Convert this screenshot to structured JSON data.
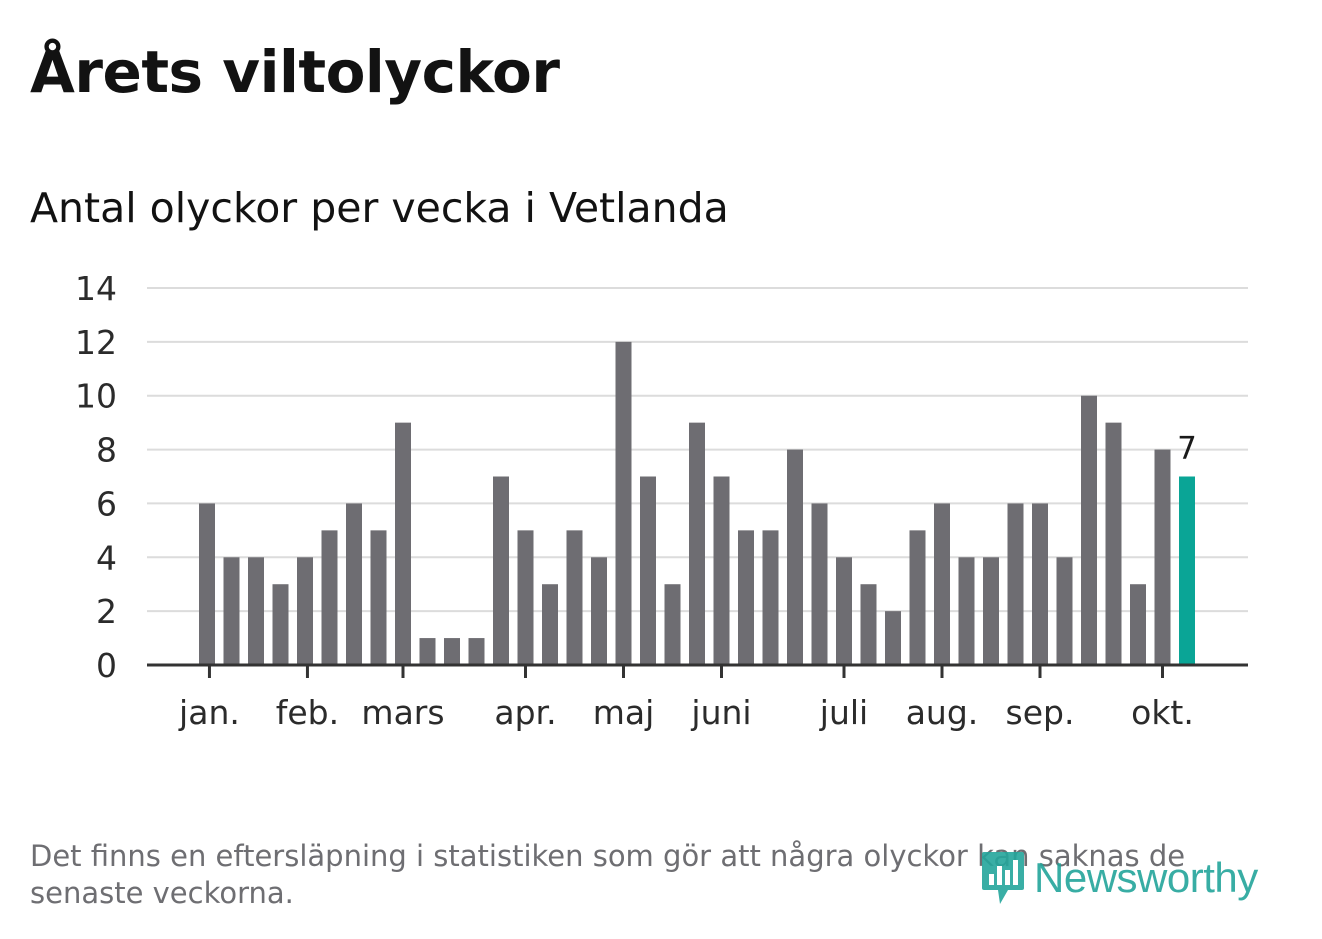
{
  "title": "Årets viltolyckor",
  "chart_data": {
    "type": "bar",
    "title": "Antal olyckor per vecka i Vetlanda",
    "xlabel": "",
    "ylabel": "",
    "ylim": [
      0,
      14
    ],
    "yticks": [
      0,
      2,
      4,
      6,
      8,
      10,
      12,
      14
    ],
    "values": [
      6,
      4,
      4,
      3,
      4,
      5,
      6,
      5,
      9,
      1,
      1,
      1,
      7,
      5,
      3,
      5,
      4,
      12,
      7,
      3,
      9,
      7,
      5,
      5,
      8,
      6,
      4,
      3,
      2,
      5,
      6,
      4,
      4,
      6,
      6,
      4,
      10,
      9,
      3,
      8,
      7
    ],
    "month_ticks": [
      {
        "label": "jan.",
        "week_index": 0.1
      },
      {
        "label": "feb.",
        "week_index": 4.1
      },
      {
        "label": "mars",
        "week_index": 8.0
      },
      {
        "label": "apr.",
        "week_index": 13.0
      },
      {
        "label": "maj",
        "week_index": 17.0
      },
      {
        "label": "juni",
        "week_index": 21.0
      },
      {
        "label": "juli",
        "week_index": 26.0
      },
      {
        "label": "aug.",
        "week_index": 30.0
      },
      {
        "label": "sep.",
        "week_index": 34.0
      },
      {
        "label": "okt.",
        "week_index": 39.0
      }
    ],
    "highlight_index": 40,
    "highlight_label": "7",
    "colors": {
      "bar": "#6e6d72",
      "highlight": "#0aa596",
      "grid": "#dcdcdc",
      "axis": "#333333",
      "tick_text": "#2b2b2b"
    },
    "grid": true
  },
  "footnote": "Det finns en eftersläpning i statistiken som gör att några olyckor kan saknas de senaste veckorna.",
  "brand": {
    "name": "Newsworthy",
    "icon": "newsworthy-logo-icon",
    "color": "#23a59b"
  }
}
